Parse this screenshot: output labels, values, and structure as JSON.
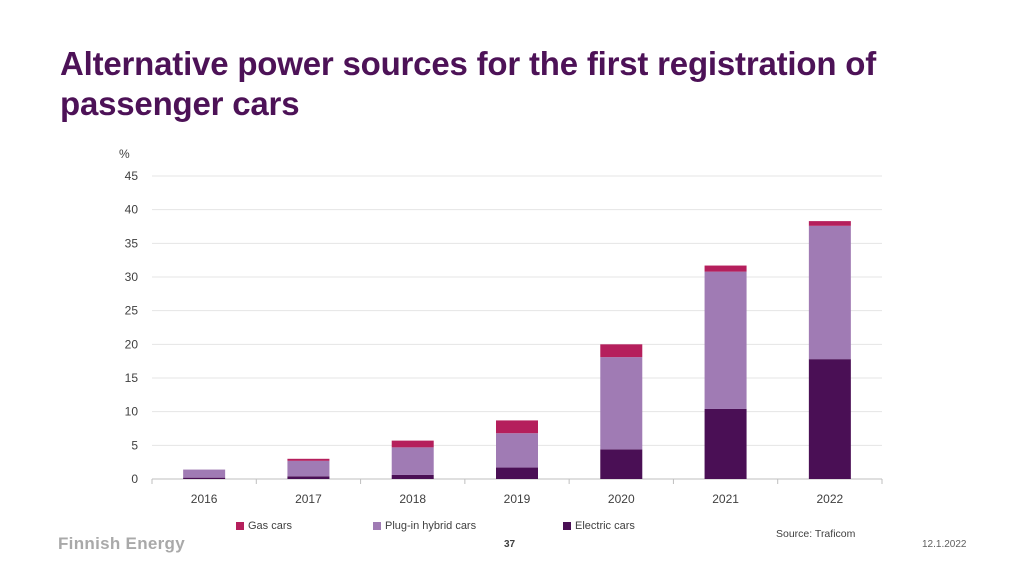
{
  "title": "Alternative power sources for the first registration of passenger cars",
  "chart_data": {
    "type": "bar",
    "stacked": true,
    "ylabel": "%",
    "ylim": [
      0,
      45
    ],
    "yticks": [
      0,
      5,
      10,
      15,
      20,
      25,
      30,
      35,
      40,
      45
    ],
    "categories": [
      "2016",
      "2017",
      "2018",
      "2019",
      "2020",
      "2021",
      "2022"
    ],
    "series": [
      {
        "name": "Electric cars",
        "color": "#4a0f55",
        "values": [
          0.2,
          0.4,
          0.6,
          1.7,
          4.4,
          10.4,
          17.8
        ]
      },
      {
        "name": "Plug-in hybrid cars",
        "color": "#a07bb4",
        "values": [
          1.2,
          2.3,
          4.1,
          5.1,
          13.7,
          20.4,
          19.8
        ]
      },
      {
        "name": "Gas cars",
        "color": "#b51f5c",
        "values": [
          0.0,
          0.3,
          1.0,
          1.9,
          1.9,
          0.9,
          0.7
        ]
      }
    ],
    "legend": [
      "Gas cars",
      "Plug-in hybrid cars",
      "Electric cars"
    ],
    "legend_position": "bottom",
    "grid": true
  },
  "footer": {
    "source": "Source: Traficom",
    "page_number": "37",
    "date": "12.1.2022",
    "logo": "Finnish Energy"
  }
}
